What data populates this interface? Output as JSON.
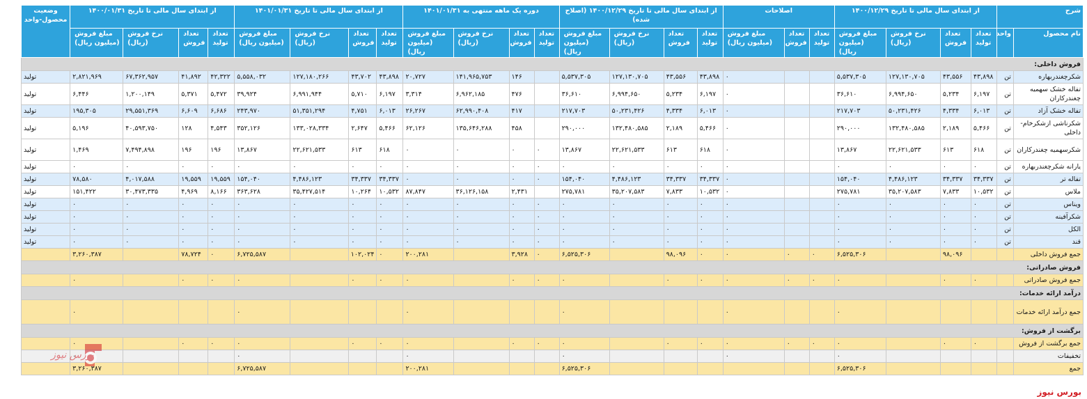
{
  "headers": {
    "sharh": "شرح",
    "g1": "از ابتدای سال مالی تا تاریخ ۱۴۰۰/۱۲/۲۹",
    "g2": "اصلاحات",
    "g3": "از ابتدای سال مالی تا تاریخ ۱۴۰۰/۱۲/۲۹ (اصلاح شده)",
    "g4": "دوره یک ماهه منتهی به ۱۴۰۱/۰۱/۳۱",
    "g5": "از ابتدای سال مالی تا تاریخ ۱۴۰۱/۰۱/۳۱",
    "g6": "از ابتدای سال مالی تا تاریخ ۱۴۰۰/۰۱/۳۱",
    "status": "وضعیت محصول-واحد",
    "product_name": "نام محصول",
    "unit": "واحد",
    "qty_prod": "تعداد تولید",
    "qty_sale": "تعداد فروش",
    "rate": "نرخ فروش (ریال)",
    "amount": "مبلغ فروش (میلیون ریال)"
  },
  "rows": [
    {
      "type": "sec",
      "label": "فروش داخلی:"
    },
    {
      "type": "row",
      "shade": "blue",
      "label": "شکرچغندربهاره",
      "unit": "تن",
      "cells": [
        "۴۳,۸۹۸",
        "۴۳,۵۵۶",
        "۱۲۷,۱۳۰,۷۰۵",
        "۵,۵۳۷,۳۰۵",
        "",
        "",
        "۰",
        "۴۳,۸۹۸",
        "۴۳,۵۵۶",
        "۱۲۷,۱۳۰,۷۰۵",
        "۵,۵۳۷,۳۰۵",
        "",
        "۱۴۶",
        "۱۴۱,۹۶۵,۷۵۳",
        "۲۰,۷۲۷",
        "۴۳,۸۹۸",
        "۴۳,۷۰۲",
        "۱۲۷,۱۸۰,۲۶۶",
        "۵,۵۵۸,۰۳۲",
        "۴۲,۳۲۲",
        "۴۱,۸۹۲",
        "۶۷,۳۶۲,۹۵۷",
        "۲,۸۲۱,۹۶۹"
      ],
      "status": "تولید"
    },
    {
      "type": "row",
      "tall": true,
      "shade": "white",
      "label": "تفاله خشک سهمیه چغندرکاران",
      "unit": "تن",
      "cells": [
        "۶,۱۹۷",
        "۵,۲۳۴",
        "۶,۹۹۴,۶۵۰",
        "۳۶,۶۱۰",
        "",
        "",
        "۰",
        "۶,۱۹۷",
        "۵,۲۳۴",
        "۶,۹۹۴,۶۵۰",
        "۳۶,۶۱۰",
        "",
        "۴۷۶",
        "۶,۹۶۲,۱۸۵",
        "۳,۳۱۴",
        "۶,۱۹۷",
        "۵,۷۱۰",
        "۶,۹۹۱,۹۴۴",
        "۳۹,۹۲۴",
        "۵,۴۷۲",
        "۵,۳۷۱",
        "۱,۲۰۰,۱۴۹",
        "۶,۴۴۶"
      ],
      "status": "تولید"
    },
    {
      "type": "row",
      "shade": "blue",
      "label": "تفاله خشک آزاد",
      "unit": "تن",
      "cells": [
        "۶,۰۱۳",
        "۴,۳۳۴",
        "۵۰,۲۳۱,۴۲۶",
        "۲۱۷,۷۰۳",
        "",
        "",
        "۰",
        "۶,۰۱۳",
        "۴,۳۳۴",
        "۵۰,۲۳۱,۴۲۶",
        "۲۱۷,۷۰۳",
        "",
        "۴۱۷",
        "۶۲,۹۹۰,۴۰۸",
        "۲۶,۲۶۷",
        "۶,۰۱۳",
        "۴,۷۵۱",
        "۵۱,۳۵۱,۲۹۴",
        "۲۴۳,۹۷۰",
        "۶,۶۸۶",
        "۶,۶۰۹",
        "۲۹,۵۵۱,۳۶۹",
        "۱۹۵,۳۰۵"
      ],
      "status": "تولید"
    },
    {
      "type": "row",
      "tall": true,
      "shade": "white",
      "label": "شکرناشی ازشکرخام-داخلی",
      "unit": "تن",
      "cells": [
        "۵,۴۶۶",
        "۲,۱۸۹",
        "۱۳۲,۴۸۰,۵۸۵",
        "۲۹۰,۰۰۰",
        "",
        "",
        "۰",
        "۵,۴۶۶",
        "۲,۱۸۹",
        "۱۳۲,۴۸۰,۵۸۵",
        "۲۹۰,۰۰۰",
        "",
        "۴۵۸",
        "۱۳۵,۶۴۶,۲۸۸",
        "۶۲,۱۲۶",
        "۵,۴۶۶",
        "۲,۶۴۷",
        "۱۳۳,۰۲۸,۳۳۴",
        "۳۵۲,۱۲۶",
        "۴,۵۴۳",
        "۱۲۸",
        "۴۰,۵۹۳,۷۵۰",
        "۵,۱۹۶"
      ],
      "status": "تولید"
    },
    {
      "type": "row",
      "tall": true,
      "shade": "white",
      "label": "شکرسهمیه چغندرکاران",
      "unit": "تن",
      "cells": [
        "۶۱۸",
        "۶۱۳",
        "۲۲,۶۲۱,۵۳۳",
        "۱۳,۸۶۷",
        "",
        "",
        "۰",
        "۶۱۸",
        "۶۱۳",
        "۲۲,۶۲۱,۵۳۳",
        "۱۳,۸۶۷",
        "۰",
        "۰",
        "۰",
        "۰",
        "۶۱۸",
        "۶۱۳",
        "۲۲,۶۲۱,۵۳۳",
        "۱۳,۸۶۷",
        "۱۹۶",
        "۱۹۶",
        "۷,۴۹۴,۸۹۸",
        "۱,۴۶۹"
      ],
      "status": "تولید"
    },
    {
      "type": "row",
      "shade": "white",
      "label": "یارانه شکرچغندربهاره",
      "unit": "تن",
      "cells": [
        "۰",
        "۰",
        "۰",
        "۰",
        "",
        "",
        "۰",
        "۰",
        "۰",
        "۰",
        "۰",
        "۰",
        "۰",
        "۰",
        "۰",
        "۰",
        "۰",
        "۰",
        "۰",
        "۰",
        "۰",
        "۰",
        "۰"
      ],
      "status": "تولید"
    },
    {
      "type": "row",
      "shade": "blue",
      "label": "تفاله تر",
      "unit": "تن",
      "cells": [
        "۳۴,۳۳۷",
        "۳۴,۳۳۷",
        "۴,۴۸۶,۱۲۳",
        "۱۵۴,۰۴۰",
        "",
        "",
        "۰",
        "۳۴,۳۳۷",
        "۳۴,۳۳۷",
        "۴,۴۸۶,۱۲۳",
        "۱۵۴,۰۴۰",
        "۰",
        "۰",
        "۰",
        "۰",
        "۳۴,۳۳۷",
        "۳۴,۳۳۷",
        "۴,۴۸۶,۱۲۳",
        "۱۵۴,۰۴۰",
        "۱۹,۵۵۹",
        "۱۹,۵۵۹",
        "۴,۰۱۷,۵۸۸",
        "۷۸,۵۸۰"
      ],
      "status": "تولید"
    },
    {
      "type": "row",
      "shade": "white",
      "label": "ملاس",
      "unit": "تن",
      "cells": [
        "۱۰,۵۳۲",
        "۷,۸۳۳",
        "۳۵,۲۰۷,۵۸۳",
        "۲۷۵,۷۸۱",
        "",
        "",
        "۰",
        "۱۰,۵۳۲",
        "۷,۸۳۳",
        "۳۵,۲۰۷,۵۸۳",
        "۲۷۵,۷۸۱",
        "",
        "۲,۴۳۱",
        "۳۶,۱۲۶,۱۵۸",
        "۸۷,۸۴۷",
        "۱۰,۵۳۲",
        "۱۰,۲۶۴",
        "۳۵,۴۲۷,۵۱۴",
        "۳۶۳,۶۲۸",
        "۸,۱۶۶",
        "۴,۹۶۹",
        "۳۰,۴۷۳,۳۳۵",
        "۱۵۱,۴۲۲"
      ],
      "status": "تولید"
    },
    {
      "type": "row",
      "shade": "blue",
      "label": "ویناس",
      "unit": "تن",
      "cells": [
        "۰",
        "۰",
        "۰",
        "۰",
        "",
        "",
        "۰",
        "۰",
        "۰",
        "۰",
        "۰",
        "۰",
        "۰",
        "۰",
        "۰",
        "۰",
        "۰",
        "۰",
        "۰",
        "۰",
        "۰",
        "۰",
        "۰"
      ],
      "status": "تولید"
    },
    {
      "type": "row",
      "shade": "blue",
      "label": "شکرآفینه",
      "unit": "تن",
      "cells": [
        "۰",
        "۰",
        "۰",
        "۰",
        "",
        "",
        "۰",
        "۰",
        "۰",
        "۰",
        "۰",
        "۰",
        "۰",
        "۰",
        "۰",
        "۰",
        "۰",
        "۰",
        "۰",
        "۰",
        "۰",
        "۰",
        "۰"
      ],
      "status": "تولید"
    },
    {
      "type": "row",
      "shade": "blue",
      "label": "الکل",
      "unit": "تن",
      "cells": [
        "۰",
        "۰",
        "۰",
        "۰",
        "",
        "",
        "۰",
        "۰",
        "۰",
        "۰",
        "۰",
        "۰",
        "۰",
        "۰",
        "۰",
        "۰",
        "۰",
        "۰",
        "۰",
        "۰",
        "۰",
        "۰",
        "۰"
      ],
      "status": "تولید"
    },
    {
      "type": "row",
      "shade": "blue",
      "label": "قند",
      "unit": "تن",
      "cells": [
        "۰",
        "۰",
        "۰",
        "۰",
        "",
        "",
        "۰",
        "۰",
        "۰",
        "۰",
        "۰",
        "۰",
        "۰",
        "۰",
        "۰",
        "۰",
        "۰",
        "۰",
        "۰",
        "۰",
        "۰",
        "۰",
        "۰"
      ],
      "status": "تولید"
    },
    {
      "type": "tot",
      "label": "جمع فروش داخلی",
      "unit": "",
      "cells": [
        "",
        "۹۸,۰۹۶",
        "",
        "۶,۵۲۵,۳۰۶",
        "۰",
        "۰",
        "۰",
        "۰",
        "۹۸,۰۹۶",
        "",
        "۶,۵۲۵,۳۰۶",
        "۰",
        "۳,۹۲۸",
        "",
        "۲۰۰,۲۸۱",
        "۰",
        "۱۰۲,۰۲۴",
        "",
        "۶,۷۲۵,۵۸۷",
        "۰",
        "۷۸,۷۲۴",
        "",
        "۳,۲۶۰,۳۸۷"
      ],
      "status": ""
    },
    {
      "type": "sec",
      "label": "فروش صادراتی:"
    },
    {
      "type": "tot",
      "label": "جمع فروش صادراتی",
      "unit": "",
      "cells": [
        "۰",
        "۰",
        "",
        "۰",
        "۰",
        "۰",
        "۰",
        "۰",
        "۰",
        "",
        "۰",
        "۰",
        "۰",
        "",
        "۰",
        "۰",
        "۰",
        "",
        "۰",
        "۰",
        "۰",
        "",
        "۰"
      ],
      "status": ""
    },
    {
      "type": "sec",
      "label": "درآمد ارائه خدمات:"
    },
    {
      "type": "tot",
      "tall": true,
      "label": "جمع درآمد ارائه خدمات",
      "unit": "",
      "cells": [
        "",
        "",
        "",
        "۰",
        "",
        "",
        "۰",
        "",
        "",
        "",
        "۰",
        "",
        "",
        "",
        "۰",
        "",
        "",
        "",
        "۰",
        "",
        "",
        "",
        "۰"
      ],
      "status": ""
    },
    {
      "type": "sec",
      "label": "برگشت از فروش:"
    },
    {
      "type": "tot",
      "label": "جمع برگشت از فروش",
      "unit": "",
      "cells": [
        "۰",
        "۰",
        "",
        "۰",
        "۰",
        "۰",
        "۰",
        "۰",
        "۰",
        "",
        "۰",
        "۰",
        "۰",
        "",
        "۰",
        "۰",
        "۰",
        "",
        "۰",
        "۰",
        "۰",
        "",
        "۰"
      ],
      "status": ""
    },
    {
      "type": "gray",
      "label": "تخفیفات",
      "unit": "",
      "cells": [
        "",
        "",
        "",
        "۰",
        "",
        "",
        "۰",
        "",
        "",
        "",
        "۰",
        "",
        "",
        "",
        "۰",
        "",
        "",
        "",
        "۰",
        "",
        "",
        "",
        "۰"
      ],
      "status": ""
    },
    {
      "type": "tot",
      "label": "جمع",
      "unit": "",
      "cells": [
        "",
        "",
        "",
        "۶,۵۲۵,۳۰۶",
        "",
        "",
        "",
        "",
        "",
        "",
        "۶,۵۲۵,۳۰۶",
        "",
        "",
        "",
        "۲۰۰,۲۸۱",
        "",
        "",
        "",
        "۶,۷۲۵,۵۸۷",
        "",
        "",
        "",
        "۳,۲۶۰,۳۸۷"
      ],
      "status": ""
    }
  ],
  "watermark": "بورس نیوز",
  "logo_text": "بورس نیوز",
  "colors": {
    "header": "#2ea3dc",
    "section": "#d7d7d7",
    "total": "#fbe6a4",
    "blue_row": "#dcecfb",
    "brand_red": "#d21f26"
  }
}
